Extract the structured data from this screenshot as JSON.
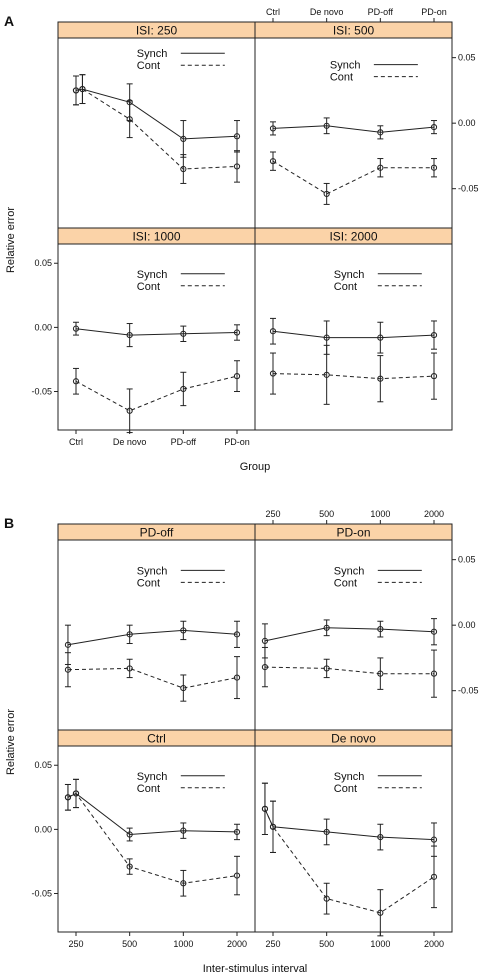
{
  "figure": {
    "panel_a_letter": "A",
    "panel_b_letter": "B"
  },
  "chart_data": [
    {
      "type": "line",
      "id": "A",
      "xlabel": "Group",
      "ylabel": "Relative error",
      "categories": [
        "Ctrl",
        "De novo",
        "PD-off",
        "PD-on"
      ],
      "ylim": [
        -0.08,
        0.065
      ],
      "yticks": [
        0.05,
        0.0,
        -0.05
      ],
      "ytick_labels": [
        "0.05",
        "0.00",
        "-0.05"
      ],
      "legend": [
        "Synch",
        "Cont"
      ],
      "panels": [
        {
          "title": "ISI: 250",
          "x": [
            0,
            0.12,
            1.0,
            2.0,
            3.0
          ],
          "series": [
            {
              "name": "Synch",
              "style": "solid",
              "values": [
                0.025,
                0.026,
                0.016,
                -0.012,
                -0.01
              ],
              "err": [
                0.011,
                0.011,
                0.014,
                0.014,
                0.012
              ]
            },
            {
              "name": "Cont",
              "style": "dashed",
              "values": [
                0.025,
                0.026,
                0.003,
                -0.035,
                -0.033
              ],
              "err": [
                0.011,
                0.011,
                0.014,
                0.011,
                0.012
              ]
            }
          ]
        },
        {
          "title": "ISI: 500",
          "x": [
            0,
            1.0,
            2.0,
            3.0
          ],
          "series": [
            {
              "name": "Synch",
              "style": "solid",
              "values": [
                -0.004,
                -0.002,
                -0.007,
                -0.003
              ],
              "err": [
                0.005,
                0.006,
                0.005,
                0.005
              ]
            },
            {
              "name": "Cont",
              "style": "dashed",
              "values": [
                -0.029,
                -0.054,
                -0.034,
                -0.034
              ],
              "err": [
                0.007,
                0.008,
                0.007,
                0.007
              ]
            }
          ]
        },
        {
          "title": "ISI: 1000",
          "x": [
            0,
            1.0,
            2.0,
            3.0
          ],
          "series": [
            {
              "name": "Synch",
              "style": "solid",
              "values": [
                -0.001,
                -0.006,
                -0.005,
                -0.004
              ],
              "err": [
                0.005,
                0.009,
                0.006,
                0.006
              ]
            },
            {
              "name": "Cont",
              "style": "dashed",
              "values": [
                -0.042,
                -0.065,
                -0.048,
                -0.038
              ],
              "err": [
                0.01,
                0.017,
                0.013,
                0.012
              ]
            }
          ]
        },
        {
          "title": "ISI: 2000",
          "x": [
            0,
            1.0,
            2.0,
            3.0
          ],
          "series": [
            {
              "name": "Synch",
              "style": "solid",
              "values": [
                -0.003,
                -0.008,
                -0.008,
                -0.006
              ],
              "err": [
                0.01,
                0.013,
                0.012,
                0.011
              ]
            },
            {
              "name": "Cont",
              "style": "dashed",
              "values": [
                -0.036,
                -0.037,
                -0.04,
                -0.038
              ],
              "err": [
                0.016,
                0.023,
                0.018,
                0.018
              ]
            }
          ]
        }
      ]
    },
    {
      "type": "line",
      "id": "B",
      "xlabel": "Inter-stimulus interval",
      "ylabel": "Relative error",
      "categories": [
        "250",
        "500",
        "1000",
        "2000"
      ],
      "ylim": [
        -0.08,
        0.065
      ],
      "yticks": [
        0.05,
        0.0,
        -0.05
      ],
      "ytick_labels": [
        "0.05",
        "0.00",
        "-0.05"
      ],
      "legend": [
        "Synch",
        "Cont"
      ],
      "panels": [
        {
          "title": "PD-off",
          "x": [
            -0.15,
            1.0,
            2.0,
            3.0
          ],
          "series": [
            {
              "name": "Synch",
              "style": "solid",
              "values": [
                -0.015,
                -0.007,
                -0.004,
                -0.007
              ],
              "err": [
                0.015,
                0.007,
                0.007,
                0.01
              ]
            },
            {
              "name": "Cont",
              "style": "dashed",
              "values": [
                -0.034,
                -0.033,
                -0.048,
                -0.04
              ],
              "err": [
                0.013,
                0.007,
                0.01,
                0.016
              ]
            }
          ]
        },
        {
          "title": "PD-on",
          "x": [
            -0.15,
            1.0,
            2.0,
            3.0
          ],
          "series": [
            {
              "name": "Synch",
              "style": "solid",
              "values": [
                -0.012,
                -0.002,
                -0.003,
                -0.005
              ],
              "err": [
                0.013,
                0.006,
                0.006,
                0.01
              ]
            },
            {
              "name": "Cont",
              "style": "dashed",
              "values": [
                -0.032,
                -0.033,
                -0.037,
                -0.037
              ],
              "err": [
                0.015,
                0.007,
                0.012,
                0.018
              ]
            }
          ]
        },
        {
          "title": "Ctrl",
          "x": [
            -0.15,
            0.0,
            1.0,
            2.0,
            3.0
          ],
          "series": [
            {
              "name": "Synch",
              "style": "solid",
              "values": [
                0.025,
                0.028,
                -0.004,
                -0.001,
                -0.002
              ],
              "err": [
                0.01,
                0.011,
                0.005,
                0.006,
                0.006
              ]
            },
            {
              "name": "Cont",
              "style": "dashed",
              "values": [
                0.025,
                0.028,
                -0.029,
                -0.042,
                -0.036
              ],
              "err": [
                0.01,
                0.011,
                0.006,
                0.01,
                0.015
              ]
            }
          ]
        },
        {
          "title": "De novo",
          "x": [
            -0.15,
            0.0,
            1.0,
            2.0,
            3.0
          ],
          "series": [
            {
              "name": "Synch",
              "style": "solid",
              "values": [
                0.016,
                0.002,
                -0.002,
                -0.006,
                -0.008
              ],
              "err": [
                0.02,
                0.02,
                0.01,
                0.01,
                0.013
              ]
            },
            {
              "name": "Cont",
              "style": "dashed",
              "values": [
                0.016,
                0.002,
                -0.054,
                -0.065,
                -0.037
              ],
              "err": [
                0.02,
                0.02,
                0.012,
                0.018,
                0.024
              ]
            }
          ]
        }
      ]
    }
  ]
}
